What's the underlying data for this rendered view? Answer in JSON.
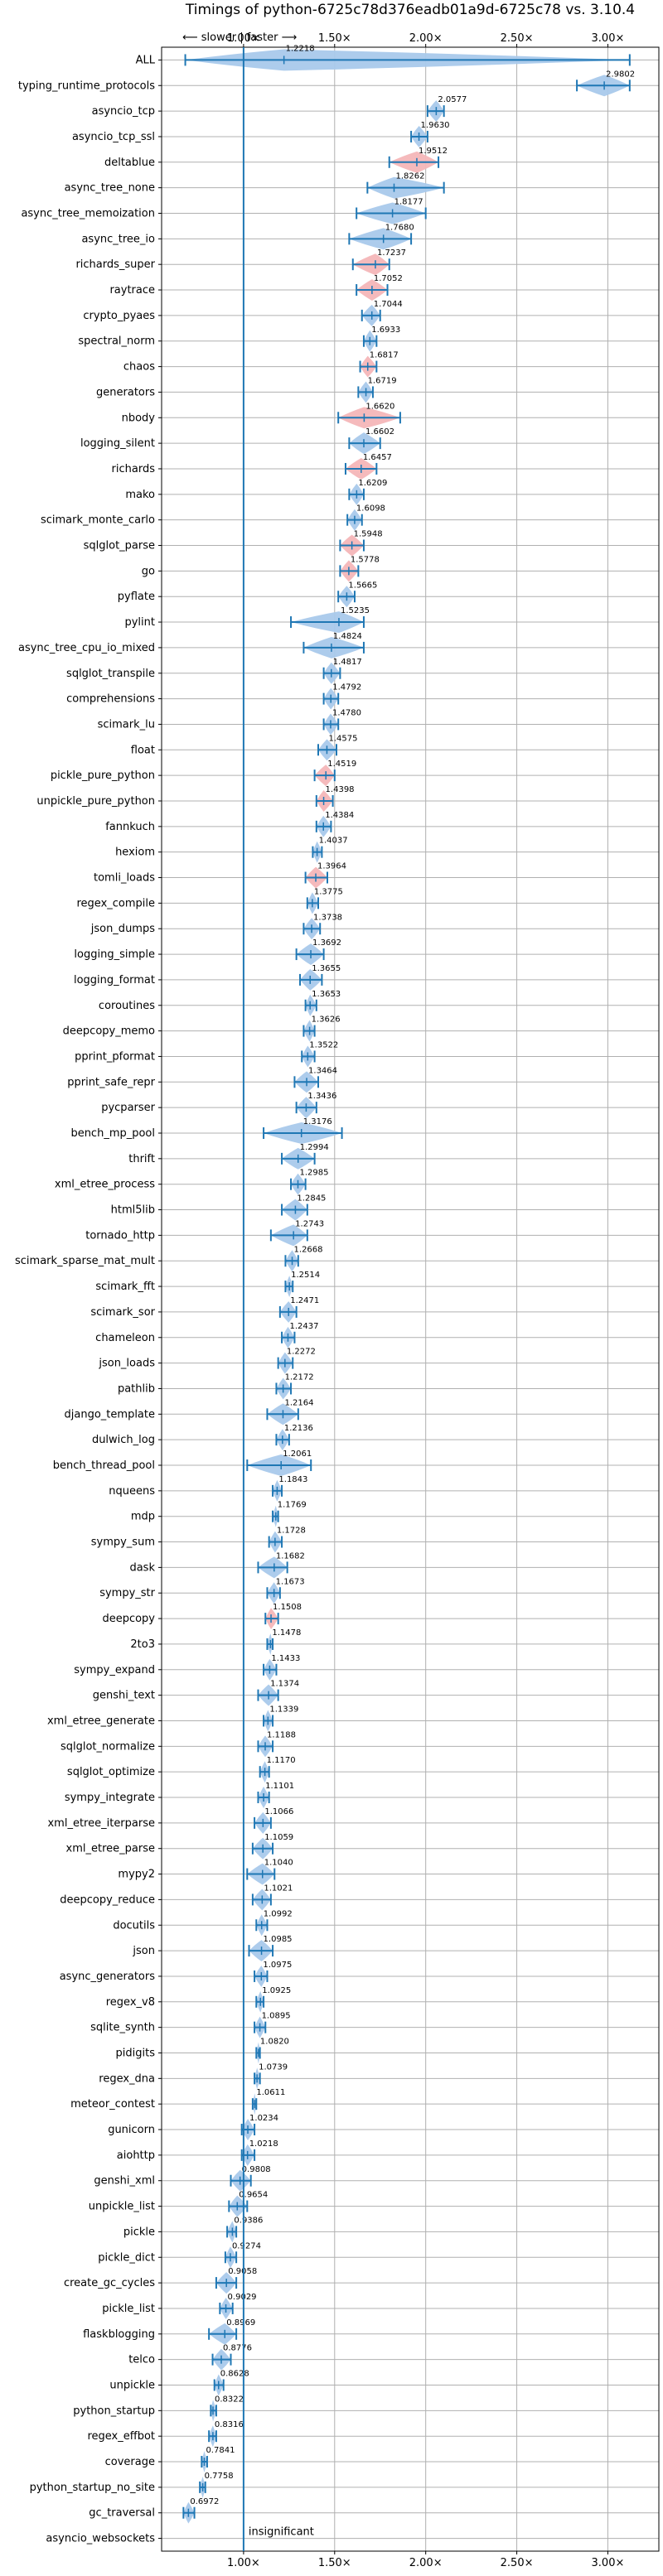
{
  "chart_data": {
    "type": "violin",
    "title": "Timings of python-6725c78d376eadb01a9d-6725c78 vs. 3.10.4",
    "x_tick_labels": [
      "1.00×",
      "1.50×",
      "2.00×",
      "2.50×",
      "3.00×"
    ],
    "x_ticks": [
      1.0,
      1.5,
      2.0,
      2.5,
      3.0
    ],
    "xlim": [
      0.55,
      3.28
    ],
    "grid": true,
    "direction_annotation": "⟵ slower | faster ⟶",
    "insignificant_label": "insignificant",
    "benchmarks": [
      {
        "name": "ALL",
        "value": 1.2218,
        "lo": 0.68,
        "hi": 3.12,
        "color": "blue",
        "label": "1.2218"
      },
      {
        "name": "typing_runtime_protocols",
        "value": 2.9802,
        "lo": 2.83,
        "hi": 3.12,
        "color": "blue",
        "label": "2.9802"
      },
      {
        "name": "asyncio_tcp",
        "value": 2.0577,
        "lo": 2.01,
        "hi": 2.1,
        "color": "blue",
        "label": "2.0577"
      },
      {
        "name": "asyncio_tcp_ssl",
        "value": 1.963,
        "lo": 1.92,
        "hi": 2.01,
        "color": "blue",
        "label": "1.9630"
      },
      {
        "name": "deltablue",
        "value": 1.9512,
        "lo": 1.8,
        "hi": 2.07,
        "color": "red",
        "label": "1.9512"
      },
      {
        "name": "async_tree_none",
        "value": 1.8262,
        "lo": 1.68,
        "hi": 2.1,
        "color": "blue",
        "label": "1.8262"
      },
      {
        "name": "async_tree_memoization",
        "value": 1.8177,
        "lo": 1.62,
        "hi": 2.0,
        "color": "blue",
        "label": "1.8177"
      },
      {
        "name": "async_tree_io",
        "value": 1.768,
        "lo": 1.58,
        "hi": 1.92,
        "color": "blue",
        "label": "1.7680"
      },
      {
        "name": "richards_super",
        "value": 1.7237,
        "lo": 1.6,
        "hi": 1.8,
        "color": "red",
        "label": "1.7237"
      },
      {
        "name": "raytrace",
        "value": 1.7052,
        "lo": 1.62,
        "hi": 1.79,
        "color": "red",
        "label": "1.7052"
      },
      {
        "name": "crypto_pyaes",
        "value": 1.7044,
        "lo": 1.65,
        "hi": 1.75,
        "color": "blue",
        "label": "1.7044"
      },
      {
        "name": "spectral_norm",
        "value": 1.6933,
        "lo": 1.66,
        "hi": 1.73,
        "color": "blue",
        "label": "1.6933"
      },
      {
        "name": "chaos",
        "value": 1.6817,
        "lo": 1.64,
        "hi": 1.73,
        "color": "red",
        "label": "1.6817"
      },
      {
        "name": "generators",
        "value": 1.6719,
        "lo": 1.63,
        "hi": 1.71,
        "color": "blue",
        "label": "1.6719"
      },
      {
        "name": "nbody",
        "value": 1.662,
        "lo": 1.52,
        "hi": 1.86,
        "color": "red",
        "label": "1.6620"
      },
      {
        "name": "logging_silent",
        "value": 1.6602,
        "lo": 1.58,
        "hi": 1.75,
        "color": "blue",
        "label": "1.6602"
      },
      {
        "name": "richards",
        "value": 1.6457,
        "lo": 1.56,
        "hi": 1.73,
        "color": "red",
        "label": "1.6457"
      },
      {
        "name": "mako",
        "value": 1.6209,
        "lo": 1.58,
        "hi": 1.66,
        "color": "blue",
        "label": "1.6209"
      },
      {
        "name": "scimark_monte_carlo",
        "value": 1.6098,
        "lo": 1.57,
        "hi": 1.65,
        "color": "blue",
        "label": "1.6098"
      },
      {
        "name": "sqlglot_parse",
        "value": 1.5948,
        "lo": 1.53,
        "hi": 1.66,
        "color": "red",
        "label": "1.5948"
      },
      {
        "name": "go",
        "value": 1.5778,
        "lo": 1.53,
        "hi": 1.63,
        "color": "red",
        "label": "1.5778"
      },
      {
        "name": "pyflate",
        "value": 1.5665,
        "lo": 1.52,
        "hi": 1.61,
        "color": "blue",
        "label": "1.5665"
      },
      {
        "name": "pylint",
        "value": 1.5235,
        "lo": 1.26,
        "hi": 1.66,
        "color": "blue",
        "label": "1.5235"
      },
      {
        "name": "async_tree_cpu_io_mixed",
        "value": 1.4824,
        "lo": 1.33,
        "hi": 1.66,
        "color": "blue",
        "label": "1.4824"
      },
      {
        "name": "sqlglot_transpile",
        "value": 1.4817,
        "lo": 1.44,
        "hi": 1.53,
        "color": "blue",
        "label": "1.4817"
      },
      {
        "name": "comprehensions",
        "value": 1.4792,
        "lo": 1.44,
        "hi": 1.52,
        "color": "blue",
        "label": "1.4792"
      },
      {
        "name": "scimark_lu",
        "value": 1.478,
        "lo": 1.44,
        "hi": 1.52,
        "color": "blue",
        "label": "1.4780"
      },
      {
        "name": "float",
        "value": 1.4575,
        "lo": 1.41,
        "hi": 1.51,
        "color": "blue",
        "label": "1.4575"
      },
      {
        "name": "pickle_pure_python",
        "value": 1.4519,
        "lo": 1.39,
        "hi": 1.5,
        "color": "red",
        "label": "1.4519"
      },
      {
        "name": "unpickle_pure_python",
        "value": 1.4398,
        "lo": 1.4,
        "hi": 1.49,
        "color": "red",
        "label": "1.4398"
      },
      {
        "name": "fannkuch",
        "value": 1.4384,
        "lo": 1.4,
        "hi": 1.48,
        "color": "blue",
        "label": "1.4384"
      },
      {
        "name": "hexiom",
        "value": 1.4037,
        "lo": 1.38,
        "hi": 1.43,
        "color": "blue",
        "label": "1.4037"
      },
      {
        "name": "tomli_loads",
        "value": 1.3964,
        "lo": 1.34,
        "hi": 1.46,
        "color": "red",
        "label": "1.3964"
      },
      {
        "name": "regex_compile",
        "value": 1.3775,
        "lo": 1.35,
        "hi": 1.41,
        "color": "blue",
        "label": "1.3775"
      },
      {
        "name": "json_dumps",
        "value": 1.3738,
        "lo": 1.33,
        "hi": 1.42,
        "color": "blue",
        "label": "1.3738"
      },
      {
        "name": "logging_simple",
        "value": 1.3692,
        "lo": 1.29,
        "hi": 1.44,
        "color": "blue",
        "label": "1.3692"
      },
      {
        "name": "logging_format",
        "value": 1.3655,
        "lo": 1.31,
        "hi": 1.43,
        "color": "blue",
        "label": "1.3655"
      },
      {
        "name": "coroutines",
        "value": 1.3653,
        "lo": 1.34,
        "hi": 1.4,
        "color": "blue",
        "label": "1.3653"
      },
      {
        "name": "deepcopy_memo",
        "value": 1.3626,
        "lo": 1.33,
        "hi": 1.39,
        "color": "blue",
        "label": "1.3626"
      },
      {
        "name": "pprint_pformat",
        "value": 1.3522,
        "lo": 1.32,
        "hi": 1.39,
        "color": "blue",
        "label": "1.3522"
      },
      {
        "name": "pprint_safe_repr",
        "value": 1.3464,
        "lo": 1.28,
        "hi": 1.41,
        "color": "blue",
        "label": "1.3464"
      },
      {
        "name": "pycparser",
        "value": 1.3436,
        "lo": 1.29,
        "hi": 1.4,
        "color": "blue",
        "label": "1.3436"
      },
      {
        "name": "bench_mp_pool",
        "value": 1.3176,
        "lo": 1.11,
        "hi": 1.54,
        "color": "blue",
        "label": "1.3176"
      },
      {
        "name": "thrift",
        "value": 1.2994,
        "lo": 1.21,
        "hi": 1.39,
        "color": "blue",
        "label": "1.2994"
      },
      {
        "name": "xml_etree_process",
        "value": 1.2985,
        "lo": 1.26,
        "hi": 1.34,
        "color": "blue",
        "label": "1.2985"
      },
      {
        "name": "html5lib",
        "value": 1.2845,
        "lo": 1.21,
        "hi": 1.35,
        "color": "blue",
        "label": "1.2845"
      },
      {
        "name": "tornado_http",
        "value": 1.2743,
        "lo": 1.15,
        "hi": 1.35,
        "color": "blue",
        "label": "1.2743"
      },
      {
        "name": "scimark_sparse_mat_mult",
        "value": 1.2668,
        "lo": 1.23,
        "hi": 1.3,
        "color": "blue",
        "label": "1.2668"
      },
      {
        "name": "scimark_fft",
        "value": 1.2514,
        "lo": 1.23,
        "hi": 1.27,
        "color": "blue",
        "label": "1.2514"
      },
      {
        "name": "scimark_sor",
        "value": 1.2471,
        "lo": 1.2,
        "hi": 1.29,
        "color": "blue",
        "label": "1.2471"
      },
      {
        "name": "chameleon",
        "value": 1.2437,
        "lo": 1.21,
        "hi": 1.28,
        "color": "blue",
        "label": "1.2437"
      },
      {
        "name": "json_loads",
        "value": 1.2272,
        "lo": 1.19,
        "hi": 1.27,
        "color": "blue",
        "label": "1.2272"
      },
      {
        "name": "pathlib",
        "value": 1.2172,
        "lo": 1.18,
        "hi": 1.26,
        "color": "blue",
        "label": "1.2172"
      },
      {
        "name": "django_template",
        "value": 1.2164,
        "lo": 1.13,
        "hi": 1.3,
        "color": "blue",
        "label": "1.2164"
      },
      {
        "name": "dulwich_log",
        "value": 1.2136,
        "lo": 1.18,
        "hi": 1.25,
        "color": "blue",
        "label": "1.2136"
      },
      {
        "name": "bench_thread_pool",
        "value": 1.2061,
        "lo": 1.02,
        "hi": 1.37,
        "color": "blue",
        "label": "1.2061"
      },
      {
        "name": "nqueens",
        "value": 1.1843,
        "lo": 1.16,
        "hi": 1.21,
        "color": "blue",
        "label": "1.1843"
      },
      {
        "name": "mdp",
        "value": 1.1769,
        "lo": 1.16,
        "hi": 1.19,
        "color": "blue",
        "label": "1.1769"
      },
      {
        "name": "sympy_sum",
        "value": 1.1728,
        "lo": 1.14,
        "hi": 1.21,
        "color": "blue",
        "label": "1.1728"
      },
      {
        "name": "dask",
        "value": 1.1682,
        "lo": 1.08,
        "hi": 1.24,
        "color": "blue",
        "label": "1.1682"
      },
      {
        "name": "sympy_str",
        "value": 1.1673,
        "lo": 1.13,
        "hi": 1.2,
        "color": "blue",
        "label": "1.1673"
      },
      {
        "name": "deepcopy",
        "value": 1.1508,
        "lo": 1.12,
        "hi": 1.19,
        "color": "red",
        "label": "1.1508"
      },
      {
        "name": "2to3",
        "value": 1.1478,
        "lo": 1.13,
        "hi": 1.16,
        "color": "blue",
        "label": "1.1478"
      },
      {
        "name": "sympy_expand",
        "value": 1.1433,
        "lo": 1.11,
        "hi": 1.18,
        "color": "blue",
        "label": "1.1433"
      },
      {
        "name": "genshi_text",
        "value": 1.1374,
        "lo": 1.08,
        "hi": 1.19,
        "color": "blue",
        "label": "1.1374"
      },
      {
        "name": "xml_etree_generate",
        "value": 1.1339,
        "lo": 1.11,
        "hi": 1.16,
        "color": "blue",
        "label": "1.1339"
      },
      {
        "name": "sqlglot_normalize",
        "value": 1.1188,
        "lo": 1.08,
        "hi": 1.16,
        "color": "blue",
        "label": "1.1188"
      },
      {
        "name": "sqlglot_optimize",
        "value": 1.117,
        "lo": 1.09,
        "hi": 1.14,
        "color": "blue",
        "label": "1.1170"
      },
      {
        "name": "sympy_integrate",
        "value": 1.1101,
        "lo": 1.08,
        "hi": 1.14,
        "color": "blue",
        "label": "1.1101"
      },
      {
        "name": "xml_etree_iterparse",
        "value": 1.1066,
        "lo": 1.06,
        "hi": 1.15,
        "color": "blue",
        "label": "1.1066"
      },
      {
        "name": "xml_etree_parse",
        "value": 1.1059,
        "lo": 1.05,
        "hi": 1.16,
        "color": "blue",
        "label": "1.1059"
      },
      {
        "name": "mypy2",
        "value": 1.104,
        "lo": 1.02,
        "hi": 1.17,
        "color": "blue",
        "label": "1.1040"
      },
      {
        "name": "deepcopy_reduce",
        "value": 1.1021,
        "lo": 1.05,
        "hi": 1.15,
        "color": "blue",
        "label": "1.1021"
      },
      {
        "name": "docutils",
        "value": 1.0992,
        "lo": 1.07,
        "hi": 1.13,
        "color": "blue",
        "label": "1.0992"
      },
      {
        "name": "json",
        "value": 1.0985,
        "lo": 1.03,
        "hi": 1.16,
        "color": "blue",
        "label": "1.0985"
      },
      {
        "name": "async_generators",
        "value": 1.0975,
        "lo": 1.06,
        "hi": 1.13,
        "color": "blue",
        "label": "1.0975"
      },
      {
        "name": "regex_v8",
        "value": 1.0925,
        "lo": 1.07,
        "hi": 1.11,
        "color": "blue",
        "label": "1.0925"
      },
      {
        "name": "sqlite_synth",
        "value": 1.0895,
        "lo": 1.06,
        "hi": 1.12,
        "color": "blue",
        "label": "1.0895"
      },
      {
        "name": "pidigits",
        "value": 1.082,
        "lo": 1.07,
        "hi": 1.09,
        "color": "blue",
        "label": "1.0820"
      },
      {
        "name": "regex_dna",
        "value": 1.0739,
        "lo": 1.06,
        "hi": 1.09,
        "color": "blue",
        "label": "1.0739"
      },
      {
        "name": "meteor_contest",
        "value": 1.0611,
        "lo": 1.05,
        "hi": 1.07,
        "color": "blue",
        "label": "1.0611"
      },
      {
        "name": "gunicorn",
        "value": 1.0234,
        "lo": 0.99,
        "hi": 1.06,
        "color": "blue",
        "label": "1.0234"
      },
      {
        "name": "aiohttp",
        "value": 1.0218,
        "lo": 0.99,
        "hi": 1.06,
        "color": "blue",
        "label": "1.0218"
      },
      {
        "name": "genshi_xml",
        "value": 0.9808,
        "lo": 0.93,
        "hi": 1.04,
        "color": "blue",
        "label": "0.9808"
      },
      {
        "name": "unpickle_list",
        "value": 0.9654,
        "lo": 0.92,
        "hi": 1.02,
        "color": "blue",
        "label": "0.9654"
      },
      {
        "name": "pickle",
        "value": 0.9386,
        "lo": 0.91,
        "hi": 0.96,
        "color": "blue",
        "label": "0.9386"
      },
      {
        "name": "pickle_dict",
        "value": 0.9274,
        "lo": 0.9,
        "hi": 0.96,
        "color": "blue",
        "label": "0.9274"
      },
      {
        "name": "create_gc_cycles",
        "value": 0.9058,
        "lo": 0.85,
        "hi": 0.96,
        "color": "blue",
        "label": "0.9058"
      },
      {
        "name": "pickle_list",
        "value": 0.9029,
        "lo": 0.87,
        "hi": 0.94,
        "color": "blue",
        "label": "0.9029"
      },
      {
        "name": "flaskblogging",
        "value": 0.8969,
        "lo": 0.81,
        "hi": 0.96,
        "color": "blue",
        "label": "0.8969"
      },
      {
        "name": "telco",
        "value": 0.8776,
        "lo": 0.83,
        "hi": 0.93,
        "color": "blue",
        "label": "0.8776"
      },
      {
        "name": "unpickle",
        "value": 0.8628,
        "lo": 0.84,
        "hi": 0.89,
        "color": "blue",
        "label": "0.8628"
      },
      {
        "name": "python_startup",
        "value": 0.8322,
        "lo": 0.82,
        "hi": 0.85,
        "color": "blue",
        "label": "0.8322"
      },
      {
        "name": "regex_effbot",
        "value": 0.8316,
        "lo": 0.81,
        "hi": 0.85,
        "color": "blue",
        "label": "0.8316"
      },
      {
        "name": "coverage",
        "value": 0.7841,
        "lo": 0.77,
        "hi": 0.8,
        "color": "blue",
        "label": "0.7841"
      },
      {
        "name": "python_startup_no_site",
        "value": 0.7758,
        "lo": 0.76,
        "hi": 0.79,
        "color": "blue",
        "label": "0.7758"
      },
      {
        "name": "gc_traversal",
        "value": 0.6972,
        "lo": 0.67,
        "hi": 0.73,
        "color": "blue",
        "label": "0.6972"
      },
      {
        "name": "asyncio_websockets",
        "value": null,
        "lo": null,
        "hi": null,
        "color": "none",
        "label": ""
      }
    ]
  },
  "colors": {
    "violin_blue": "#a9c9eb",
    "violin_red": "#f4b6b8",
    "errorbar": "#1f77b4",
    "grid": "#b0b0b0"
  }
}
